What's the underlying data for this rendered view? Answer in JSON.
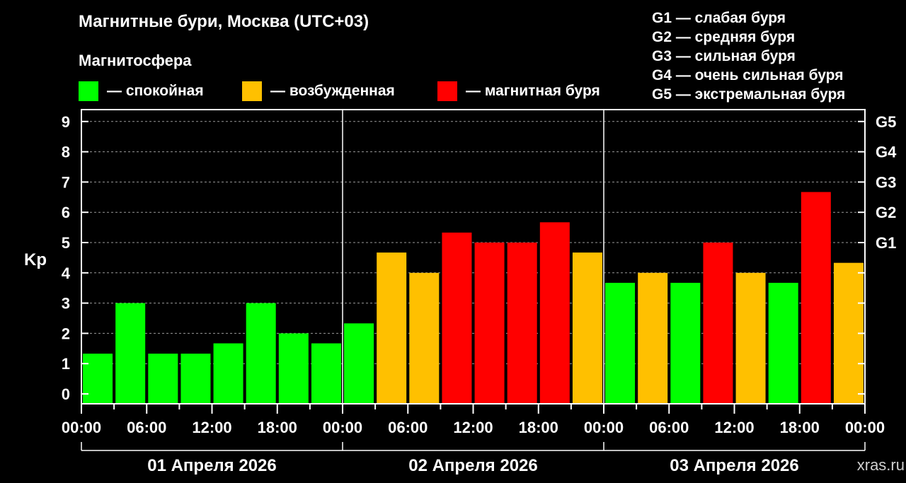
{
  "title": "Магнитные бури, Москва (UTC+03)",
  "subtitle": "Магнитосфера",
  "status_legend": [
    {
      "label": "— спокойная",
      "color": "#00ff00"
    },
    {
      "label": "— возбужденная",
      "color": "#ffc000"
    },
    {
      "label": "— магнитная буря",
      "color": "#ff0000"
    }
  ],
  "g_scale_legend": [
    "G1 — слабая буря",
    "G2 — средняя буря",
    "G3 — сильная буря",
    "G4 — очень сильная буря",
    "G5 — экстремальная буря"
  ],
  "watermark": "xras.ru",
  "colors": {
    "quiet": "#00ff00",
    "active": "#ffc000",
    "storm": "#ff0000",
    "background": "#000000",
    "axis": "#ffffff"
  },
  "chart_data": {
    "type": "bar",
    "ylabel": "Kp",
    "ylim": [
      0,
      9
    ],
    "yticks": [
      0,
      1,
      2,
      3,
      4,
      5,
      6,
      7,
      8,
      9
    ],
    "y2ticks": [
      {
        "value": 5,
        "label": "G1"
      },
      {
        "value": 6,
        "label": "G2"
      },
      {
        "value": 7,
        "label": "G3"
      },
      {
        "value": 8,
        "label": "G4"
      },
      {
        "value": 9,
        "label": "G5"
      }
    ],
    "xtick_labels": [
      "00:00",
      "06:00",
      "12:00",
      "18:00",
      "00:00",
      "06:00",
      "12:00",
      "18:00",
      "00:00",
      "06:00",
      "12:00",
      "18:00",
      "00:00"
    ],
    "days": [
      "01 Апреля 2026",
      "02 Апреля 2026",
      "03 Апреля 2026"
    ],
    "grid": true,
    "values": [
      1.33,
      3.0,
      1.33,
      1.33,
      1.67,
      3.0,
      2.0,
      1.67,
      2.33,
      4.67,
      4.0,
      5.33,
      5.0,
      5.0,
      5.67,
      4.67,
      3.67,
      4.0,
      3.67,
      5.0,
      4.0,
      3.67,
      6.67,
      4.33
    ],
    "levels": [
      "quiet",
      "quiet",
      "quiet",
      "quiet",
      "quiet",
      "quiet",
      "quiet",
      "quiet",
      "quiet",
      "active",
      "active",
      "storm",
      "storm",
      "storm",
      "storm",
      "active",
      "quiet",
      "active",
      "quiet",
      "storm",
      "active",
      "quiet",
      "storm",
      "active"
    ]
  }
}
